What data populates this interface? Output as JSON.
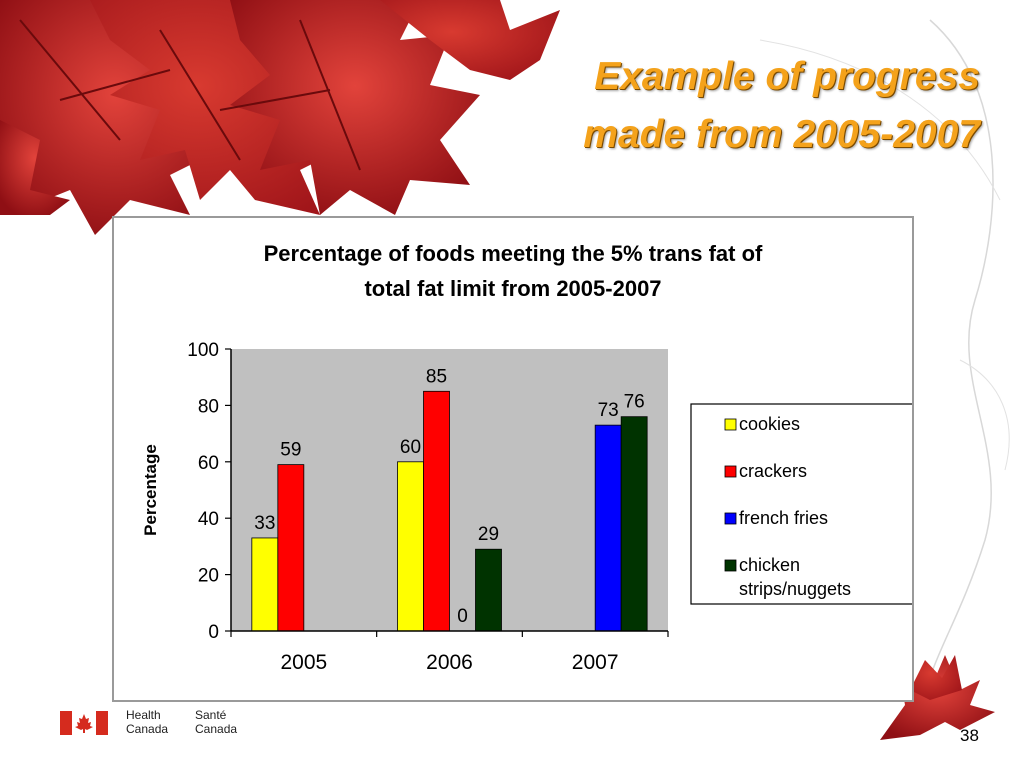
{
  "slide": {
    "title_line1": "Example of progress",
    "title_line2": "made from 2005-2007",
    "page_number": "38",
    "logo_line1_en": "Health",
    "logo_line2_en": "Canada",
    "logo_line1_fr": "Santé",
    "logo_line2_fr": "Canada"
  },
  "colors": {
    "title": "#f4a21b",
    "plot_bg": "#c0c0c0",
    "leaf": "#c8102e"
  },
  "chart_data": {
    "type": "bar",
    "title_line1": "Percentage of foods meeting the 5%  trans fat of",
    "title_line2": "total fat limit from 2005-2007",
    "ylabel": "Percentage",
    "xlabel": "",
    "ylim": [
      0,
      100
    ],
    "yticks": [
      "0",
      "20",
      "40",
      "60",
      "80",
      "100"
    ],
    "categories": [
      "2005",
      "2006",
      "2007"
    ],
    "series": [
      {
        "name": "cookies",
        "color": "#ffff00",
        "values": [
          33,
          60,
          null
        ],
        "labels": [
          "33",
          "60",
          ""
        ]
      },
      {
        "name": "crackers",
        "color": "#ff0000",
        "values": [
          59,
          85,
          null
        ],
        "labels": [
          "59",
          "85",
          ""
        ]
      },
      {
        "name": "french fries",
        "color": "#0000ff",
        "values": [
          null,
          0,
          73
        ],
        "labels": [
          "",
          "0",
          "73"
        ]
      },
      {
        "name": "chicken strips/nuggets",
        "color": "#003300",
        "values": [
          null,
          29,
          76
        ],
        "labels": [
          "",
          "29",
          "76"
        ]
      }
    ],
    "legend": {
      "position": "right",
      "entries": [
        {
          "line1": "cookies",
          "line2": ""
        },
        {
          "line1": "crackers",
          "line2": ""
        },
        {
          "line1": "french fries",
          "line2": ""
        },
        {
          "line1": "chicken",
          "line2": "strips/nuggets"
        }
      ]
    },
    "grid": false
  }
}
